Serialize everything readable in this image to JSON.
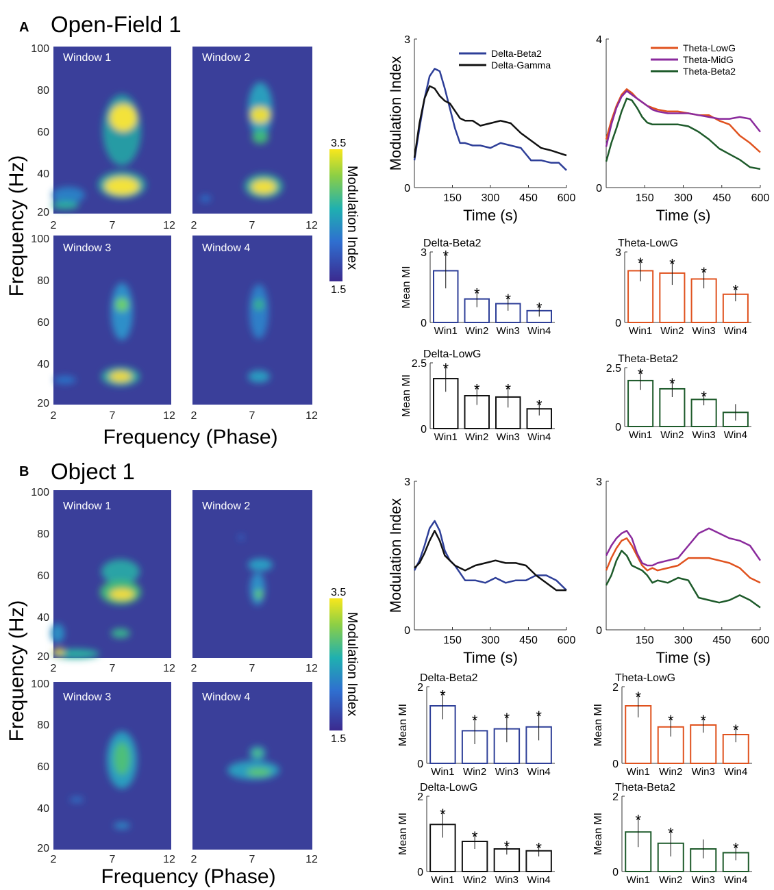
{
  "panels": {
    "A": {
      "letter": "A",
      "title": "Open-Field 1"
    },
    "B": {
      "letter": "B",
      "title": "Object 1"
    }
  },
  "colors": {
    "delta_beta2": "#2e3f98",
    "delta_gamma": "#111111",
    "theta_lowg": "#e0521e",
    "theta_midg": "#8a2a9c",
    "theta_beta2": "#1d5a2a",
    "comod_bg": "#3a3f9a"
  },
  "comod": {
    "xlabel": "Frequency (Phase)",
    "ylabel": "Frequency (Hz)",
    "xticks": [
      "2",
      "7",
      "12"
    ],
    "yticks": [
      "20",
      "40",
      "60",
      "80",
      "100"
    ],
    "colorbar": {
      "label": "Modulation Index",
      "max_label": "3.5",
      "min_label": "1.5"
    },
    "windows": [
      "Window 1",
      "Window 2",
      "Window 3",
      "Window 4"
    ]
  },
  "chart_data": [
    {
      "id": "A-line-delta",
      "type": "line",
      "panel": "A",
      "ylabel": "Modulation Index",
      "xlabel": "Time (s)",
      "xlim": [
        0,
        600
      ],
      "ylim": [
        0,
        3
      ],
      "xticks": [
        "150",
        "300",
        "450",
        "600"
      ],
      "yticks": [
        "0",
        "3"
      ],
      "series": [
        {
          "name": "Delta-Beta2",
          "color": "#2e3f98",
          "legend": true,
          "x": [
            0,
            20,
            40,
            60,
            80,
            100,
            120,
            140,
            160,
            180,
            200,
            230,
            260,
            300,
            340,
            380,
            420,
            460,
            500,
            540,
            570,
            600
          ],
          "y": [
            0.55,
            1.2,
            1.8,
            2.25,
            2.4,
            2.35,
            2.0,
            1.6,
            1.2,
            0.9,
            0.9,
            0.85,
            0.85,
            0.8,
            0.9,
            0.85,
            0.8,
            0.55,
            0.55,
            0.5,
            0.5,
            0.35
          ]
        },
        {
          "name": "Delta-Gamma",
          "color": "#111111",
          "legend": true,
          "x": [
            0,
            20,
            40,
            60,
            80,
            100,
            120,
            140,
            160,
            180,
            200,
            230,
            260,
            300,
            340,
            380,
            420,
            460,
            500,
            540,
            570,
            600
          ],
          "y": [
            0.6,
            1.3,
            1.8,
            2.05,
            2.0,
            1.85,
            1.75,
            1.7,
            1.55,
            1.4,
            1.35,
            1.35,
            1.25,
            1.3,
            1.35,
            1.3,
            1.1,
            0.95,
            0.8,
            0.75,
            0.7,
            0.65
          ]
        }
      ],
      "legend_labels": [
        "Delta-Beta2",
        "Delta-Gamma"
      ]
    },
    {
      "id": "A-line-theta",
      "type": "line",
      "panel": "A",
      "xlabel": "Time (s)",
      "xlim": [
        0,
        600
      ],
      "ylim": [
        0,
        4
      ],
      "xticks": [
        "150",
        "300",
        "450",
        "600"
      ],
      "yticks": [
        "0",
        "4"
      ],
      "series": [
        {
          "name": "Theta-LowG",
          "color": "#e0521e",
          "x": [
            0,
            20,
            40,
            60,
            80,
            100,
            120,
            140,
            160,
            180,
            200,
            240,
            280,
            320,
            360,
            400,
            440,
            480,
            520,
            560,
            600
          ],
          "y": [
            1.3,
            1.8,
            2.2,
            2.5,
            2.65,
            2.55,
            2.4,
            2.3,
            2.2,
            2.15,
            2.1,
            2.05,
            2.05,
            2.0,
            1.95,
            1.95,
            1.8,
            1.7,
            1.4,
            1.2,
            0.95
          ]
        },
        {
          "name": "Theta-MidG",
          "color": "#8a2a9c",
          "x": [
            0,
            20,
            40,
            60,
            80,
            100,
            120,
            140,
            160,
            180,
            200,
            240,
            280,
            320,
            360,
            400,
            440,
            480,
            520,
            560,
            600
          ],
          "y": [
            1.1,
            1.7,
            2.15,
            2.45,
            2.6,
            2.5,
            2.4,
            2.3,
            2.2,
            2.1,
            2.05,
            2.0,
            2.0,
            2.0,
            1.95,
            1.9,
            1.85,
            1.85,
            1.9,
            1.85,
            1.5
          ]
        },
        {
          "name": "Theta-Beta2",
          "color": "#1d5a2a",
          "x": [
            0,
            20,
            40,
            60,
            80,
            100,
            120,
            140,
            160,
            180,
            200,
            240,
            280,
            320,
            360,
            400,
            440,
            480,
            520,
            560,
            600
          ],
          "y": [
            0.7,
            1.2,
            1.6,
            2.05,
            2.4,
            2.35,
            2.15,
            1.9,
            1.75,
            1.7,
            1.7,
            1.7,
            1.7,
            1.65,
            1.5,
            1.3,
            1.05,
            0.9,
            0.75,
            0.55,
            0.5
          ]
        }
      ],
      "legend_labels": [
        "Theta-LowG",
        "Theta-MidG",
        "Theta-Beta2"
      ]
    },
    {
      "id": "A-bar-db2",
      "type": "bar",
      "panel": "A",
      "title": "Delta-Beta2",
      "ylabel": "Mean MI",
      "color": "#2e3f98",
      "ylim": [
        0,
        3
      ],
      "yticks": [
        "0",
        "3"
      ],
      "categories": [
        "Win1",
        "Win2",
        "Win3",
        "Win4"
      ],
      "values": [
        2.2,
        1.0,
        0.8,
        0.5
      ],
      "errors": [
        0.75,
        0.35,
        0.3,
        0.25
      ],
      "significant": [
        true,
        true,
        true,
        true
      ]
    },
    {
      "id": "A-bar-tlg",
      "type": "bar",
      "panel": "A",
      "title": "Theta-LowG",
      "color": "#e0521e",
      "ylim": [
        0,
        3
      ],
      "yticks": [
        "0",
        "3"
      ],
      "categories": [
        "Win1",
        "Win2",
        "Win3",
        "Win4"
      ],
      "values": [
        2.2,
        2.1,
        1.85,
        1.2
      ],
      "errors": [
        0.45,
        0.5,
        0.4,
        0.3
      ],
      "significant": [
        true,
        true,
        true,
        true
      ]
    },
    {
      "id": "A-bar-dlg",
      "type": "bar",
      "panel": "A",
      "title": "Delta-LowG",
      "ylabel": "Mean MI",
      "color": "#111111",
      "ylim": [
        0,
        2.5
      ],
      "yticks": [
        "0",
        "2.5"
      ],
      "categories": [
        "Win1",
        "Win2",
        "Win3",
        "Win4"
      ],
      "values": [
        1.9,
        1.25,
        1.2,
        0.75
      ],
      "errors": [
        0.5,
        0.35,
        0.4,
        0.25
      ],
      "significant": [
        true,
        true,
        true,
        true
      ]
    },
    {
      "id": "A-bar-tb2",
      "type": "bar",
      "panel": "A",
      "title": "Theta-Beta2",
      "color": "#1d5a2a",
      "ylim": [
        0,
        2.5
      ],
      "yticks": [
        "0",
        "2.5"
      ],
      "categories": [
        "Win1",
        "Win2",
        "Win3",
        "Win4"
      ],
      "values": [
        1.95,
        1.6,
        1.15,
        0.6
      ],
      "errors": [
        0.4,
        0.35,
        0.25,
        0.35
      ],
      "significant": [
        true,
        true,
        true,
        false
      ]
    },
    {
      "id": "B-line-delta",
      "type": "line",
      "panel": "B",
      "ylabel": "Modulation Index",
      "xlabel": "Time (s)",
      "xlim": [
        0,
        600
      ],
      "ylim": [
        0,
        3
      ],
      "xticks": [
        "150",
        "300",
        "450",
        "600"
      ],
      "yticks": [
        "0",
        "3"
      ],
      "series": [
        {
          "name": "Delta-Beta2",
          "color": "#2e3f98",
          "x": [
            0,
            20,
            40,
            60,
            80,
            100,
            120,
            140,
            160,
            180,
            200,
            240,
            280,
            320,
            360,
            400,
            440,
            480,
            520,
            560,
            600
          ],
          "y": [
            1.2,
            1.4,
            1.7,
            2.05,
            2.2,
            2.0,
            1.6,
            1.4,
            1.3,
            1.15,
            1.0,
            1.0,
            0.95,
            1.05,
            0.95,
            1.0,
            1.0,
            1.1,
            1.1,
            1.0,
            0.8
          ]
        },
        {
          "name": "Delta-Gamma",
          "color": "#111111",
          "x": [
            0,
            20,
            40,
            60,
            80,
            100,
            120,
            140,
            160,
            180,
            200,
            240,
            280,
            320,
            360,
            400,
            440,
            480,
            520,
            560,
            600
          ],
          "y": [
            1.25,
            1.35,
            1.55,
            1.8,
            2.0,
            1.8,
            1.5,
            1.4,
            1.3,
            1.25,
            1.2,
            1.3,
            1.35,
            1.4,
            1.35,
            1.35,
            1.3,
            1.1,
            0.95,
            0.8,
            0.8
          ]
        }
      ]
    },
    {
      "id": "B-line-theta",
      "type": "line",
      "panel": "B",
      "xlabel": "Time (s)",
      "xlim": [
        0,
        600
      ],
      "ylim": [
        0,
        3
      ],
      "xticks": [
        "150",
        "300",
        "450",
        "600"
      ],
      "yticks": [
        "0",
        "3"
      ],
      "series": [
        {
          "name": "Theta-LowG",
          "color": "#e0521e",
          "x": [
            0,
            20,
            40,
            60,
            80,
            100,
            120,
            140,
            160,
            180,
            200,
            240,
            280,
            320,
            360,
            400,
            440,
            480,
            520,
            560,
            600
          ],
          "y": [
            1.2,
            1.45,
            1.65,
            1.8,
            1.85,
            1.7,
            1.5,
            1.3,
            1.2,
            1.25,
            1.2,
            1.25,
            1.3,
            1.45,
            1.45,
            1.45,
            1.4,
            1.35,
            1.25,
            1.05,
            0.95
          ]
        },
        {
          "name": "Theta-MidG",
          "color": "#8a2a9c",
          "x": [
            0,
            20,
            40,
            60,
            80,
            100,
            120,
            140,
            160,
            180,
            200,
            240,
            280,
            320,
            360,
            400,
            440,
            480,
            520,
            560,
            600
          ],
          "y": [
            1.5,
            1.7,
            1.85,
            1.95,
            2.0,
            1.85,
            1.55,
            1.35,
            1.3,
            1.3,
            1.35,
            1.4,
            1.45,
            1.7,
            1.95,
            2.05,
            1.95,
            1.85,
            1.8,
            1.7,
            1.4
          ]
        },
        {
          "name": "Theta-Beta2",
          "color": "#1d5a2a",
          "x": [
            0,
            20,
            40,
            60,
            80,
            100,
            120,
            140,
            160,
            180,
            200,
            240,
            280,
            320,
            360,
            400,
            440,
            480,
            520,
            560,
            600
          ],
          "y": [
            0.9,
            1.1,
            1.4,
            1.6,
            1.5,
            1.3,
            1.25,
            1.2,
            1.1,
            0.95,
            1.0,
            0.95,
            1.05,
            1.0,
            0.65,
            0.6,
            0.55,
            0.6,
            0.7,
            0.6,
            0.45
          ]
        }
      ]
    },
    {
      "id": "B-bar-db2",
      "type": "bar",
      "panel": "B",
      "title": "Delta-Beta2",
      "ylabel": "Mean MI",
      "color": "#2e3f98",
      "ylim": [
        0,
        2
      ],
      "yticks": [
        "0",
        "2"
      ],
      "categories": [
        "Win1",
        "Win2",
        "Win3",
        "Win4"
      ],
      "values": [
        1.5,
        0.85,
        0.9,
        0.95
      ],
      "errors": [
        0.35,
        0.35,
        0.35,
        0.35
      ],
      "significant": [
        true,
        true,
        true,
        true
      ]
    },
    {
      "id": "B-bar-tlg",
      "type": "bar",
      "panel": "B",
      "title": "Theta-LowG",
      "ylabel": "Mean MI",
      "color": "#e0521e",
      "ylim": [
        0,
        2
      ],
      "yticks": [
        "0",
        "2"
      ],
      "categories": [
        "Win1",
        "Win2",
        "Win3",
        "Win4"
      ],
      "values": [
        1.5,
        0.95,
        1.0,
        0.75
      ],
      "errors": [
        0.3,
        0.25,
        0.2,
        0.2
      ],
      "significant": [
        true,
        true,
        true,
        true
      ]
    },
    {
      "id": "B-bar-dlg",
      "type": "bar",
      "panel": "B",
      "title": "Delta-LowG",
      "ylabel": "Mean MI",
      "color": "#111111",
      "ylim": [
        0,
        2
      ],
      "yticks": [
        "0",
        "2"
      ],
      "categories": [
        "Win1",
        "Win2",
        "Win3",
        "Win4"
      ],
      "values": [
        1.25,
        0.8,
        0.6,
        0.55
      ],
      "errors": [
        0.35,
        0.2,
        0.15,
        0.15
      ],
      "significant": [
        true,
        true,
        true,
        true
      ]
    },
    {
      "id": "B-bar-tb2",
      "type": "bar",
      "panel": "B",
      "title": "Theta-Beta2",
      "ylabel": "Mean MI",
      "color": "#1d5a2a",
      "ylim": [
        0,
        2
      ],
      "yticks": [
        "0",
        "2"
      ],
      "categories": [
        "Win1",
        "Win2",
        "Win3",
        "Win4"
      ],
      "values": [
        1.05,
        0.75,
        0.6,
        0.5
      ],
      "errors": [
        0.4,
        0.35,
        0.25,
        0.2
      ],
      "significant": [
        true,
        true,
        false,
        true
      ]
    }
  ]
}
